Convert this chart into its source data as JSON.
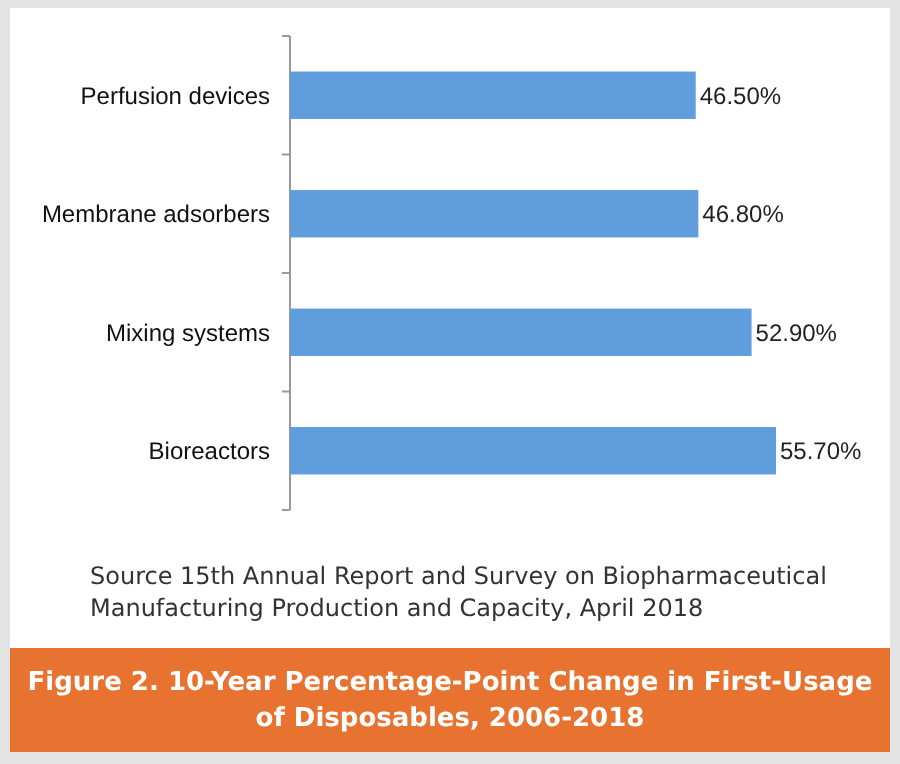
{
  "chart_data": {
    "type": "bar",
    "orientation": "horizontal",
    "title": "Figure 2. 10-Year Percentage-Point Change in First-Usage of Disposables, 2006-2018",
    "categories": [
      "Perfusion devices",
      "Membrane adsorbers",
      "Mixing systems",
      "Bioreactors"
    ],
    "values": [
      46.5,
      46.8,
      52.9,
      55.7
    ],
    "value_labels": [
      "46.50%",
      "46.80%",
      "52.90%",
      "55.70%"
    ],
    "color": "#5f9ddc",
    "tick_labels": "y",
    "annotations": [
      "Source 15th Annual Report and Survey on Biopharmaceutical Manufacturing Production and Capacity, April 2018"
    ]
  }
}
